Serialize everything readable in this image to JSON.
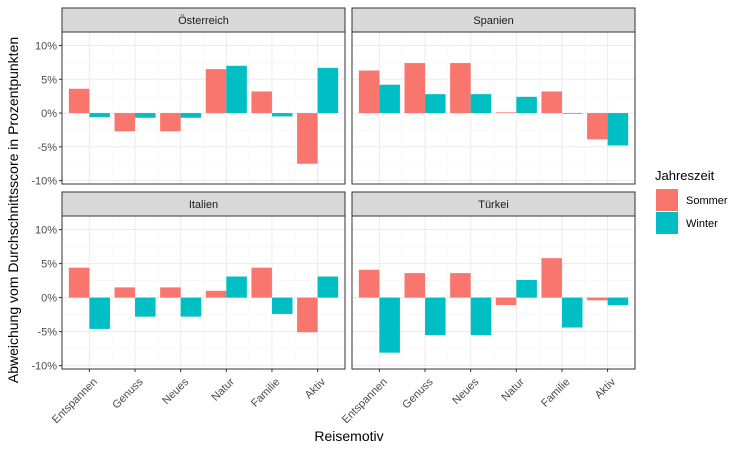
{
  "chart_data": {
    "type": "bar",
    "facet_layout": "2x2",
    "categories": [
      "Entspannen",
      "Genuss",
      "Neues",
      "Natur",
      "Familie",
      "Aktiv"
    ],
    "xlabel": "Reisemotiv",
    "ylabel": "Abweichung vom Durchschnittsscore in Prozentpunkten",
    "ylim": [
      -10.5,
      12
    ],
    "yticks": [
      -10,
      -5,
      0,
      5,
      10
    ],
    "ytick_labels": [
      "-10%",
      "-5%",
      "0%",
      "5%",
      "10%"
    ],
    "grid": true,
    "legend": {
      "title": "Jahreszeit",
      "position": "right",
      "entries": [
        "Sommer",
        "Winter"
      ]
    },
    "colors": {
      "Sommer": "#F8766D",
      "Winter": "#00BFC4"
    },
    "panels": [
      {
        "title": "Österreich",
        "series": [
          {
            "name": "Sommer",
            "values": [
              3.6,
              -2.7,
              -2.7,
              6.5,
              3.2,
              -7.5
            ]
          },
          {
            "name": "Winter",
            "values": [
              -0.6,
              -0.7,
              -0.7,
              7.0,
              -0.5,
              6.7
            ]
          }
        ]
      },
      {
        "title": "Spanien",
        "series": [
          {
            "name": "Sommer",
            "values": [
              6.3,
              7.4,
              7.4,
              0.1,
              3.2,
              -3.9
            ]
          },
          {
            "name": "Winter",
            "values": [
              4.2,
              2.8,
              2.8,
              2.4,
              -0.1,
              -4.8
            ]
          }
        ]
      },
      {
        "title": "Italien",
        "series": [
          {
            "name": "Sommer",
            "values": [
              4.4,
              1.5,
              1.5,
              1.0,
              4.4,
              -5.1
            ]
          },
          {
            "name": "Winter",
            "values": [
              -4.6,
              -2.8,
              -2.8,
              3.1,
              -2.4,
              3.1
            ]
          }
        ]
      },
      {
        "title": "Türkei",
        "series": [
          {
            "name": "Sommer",
            "values": [
              4.1,
              3.6,
              3.6,
              -1.1,
              5.8,
              -0.4
            ]
          },
          {
            "name": "Winter",
            "values": [
              -8.1,
              -5.5,
              -5.5,
              2.6,
              -4.4,
              -1.1
            ]
          }
        ]
      }
    ]
  }
}
